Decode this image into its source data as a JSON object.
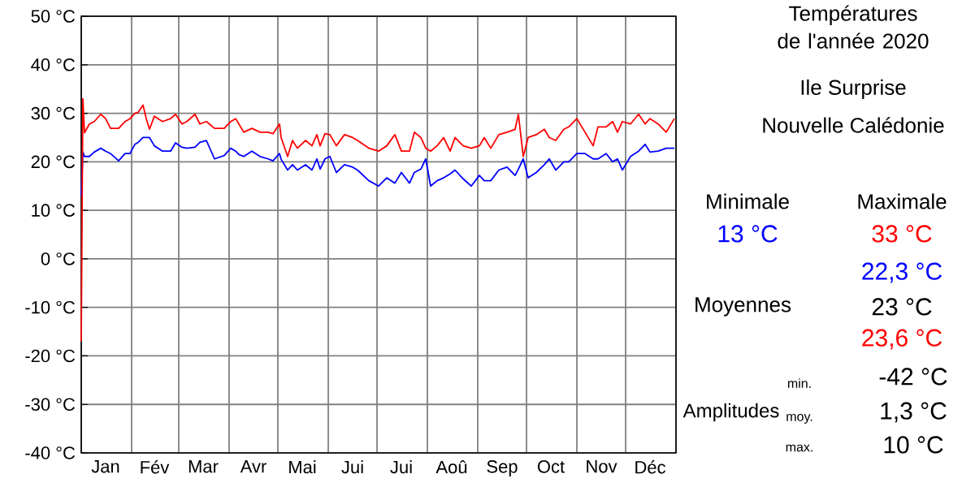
{
  "chart_data": {
    "type": "line",
    "title": "Températures de l'année 2020",
    "x": [
      "2020-01-01",
      "2020-01-02",
      "2020-01-03",
      "2020-01-06",
      "2020-01-09",
      "2020-01-13",
      "2020-01-16",
      "2020-01-19",
      "2020-01-24",
      "2020-01-28",
      "2020-01-31",
      "2020-02-03",
      "2020-02-05",
      "2020-02-08",
      "2020-02-10",
      "2020-02-12",
      "2020-02-15",
      "2020-02-20",
      "2020-02-25",
      "2020-02-28",
      "2020-03-03",
      "2020-03-06",
      "2020-03-11",
      "2020-03-14",
      "2020-03-18",
      "2020-03-23",
      "2020-03-29",
      "2020-04-02",
      "2020-04-05",
      "2020-04-07",
      "2020-04-10",
      "2020-04-15",
      "2020-04-20",
      "2020-04-25",
      "2020-04-28",
      "2020-05-02",
      "2020-05-03",
      "2020-05-07",
      "2020-05-10",
      "2020-05-13",
      "2020-05-18",
      "2020-05-22",
      "2020-05-25",
      "2020-05-27",
      "2020-05-30",
      "2020-06-02",
      "2020-06-06",
      "2020-06-11",
      "2020-06-16",
      "2020-06-19",
      "2020-06-26",
      "2020-07-02",
      "2020-07-07",
      "2020-07-12",
      "2020-07-16",
      "2020-07-21",
      "2020-07-24",
      "2020-07-28",
      "2020-07-31",
      "2020-08-03",
      "2020-08-07",
      "2020-08-11",
      "2020-08-15",
      "2020-08-18",
      "2020-08-23",
      "2020-08-28",
      "2020-09-02",
      "2020-09-05",
      "2020-09-09",
      "2020-09-14",
      "2020-09-19",
      "2020-09-24",
      "2020-09-26",
      "2020-09-29",
      "2020-10-02",
      "2020-10-07",
      "2020-10-12",
      "2020-10-15",
      "2020-10-19",
      "2020-10-24",
      "2020-10-27",
      "2020-11-01",
      "2020-11-06",
      "2020-11-11",
      "2020-11-14",
      "2020-11-19",
      "2020-11-23",
      "2020-11-26",
      "2020-11-29",
      "2020-12-04",
      "2020-12-09",
      "2020-12-13",
      "2020-12-16",
      "2020-12-21",
      "2020-12-26",
      "2020-12-31"
    ],
    "series": [
      {
        "color": "#0000ff",
        "values": [
          13,
          22,
          21.1,
          21.1,
          22,
          22.8,
          22.2,
          21.7,
          20.2,
          21.7,
          21.7,
          23.6,
          24,
          25,
          25,
          25,
          23.3,
          22.2,
          22.2,
          23.9,
          23,
          22.8,
          23,
          24,
          24.4,
          20.6,
          21.3,
          22.8,
          22.2,
          21.5,
          21.1,
          22.2,
          21.1,
          20.6,
          20.2,
          21.7,
          20.5,
          18.3,
          19.4,
          18.3,
          19.4,
          18.3,
          20.6,
          18.5,
          20.6,
          21.1,
          17.8,
          19.4,
          18.9,
          18.3,
          16.1,
          15,
          16.7,
          15.6,
          17.8,
          15.6,
          17.8,
          18.5,
          20.6,
          15,
          16.1,
          16.7,
          17.5,
          18.3,
          16.5,
          15,
          17.2,
          16.1,
          16.1,
          18.3,
          18.9,
          17.2,
          18.5,
          20.6,
          16.7,
          17.8,
          19.4,
          20.6,
          18.3,
          20,
          20,
          21.7,
          21.7,
          20.6,
          20.6,
          21.7,
          20,
          20.6,
          18.3,
          21.1,
          22.2,
          23.6,
          22,
          22.2,
          22.8,
          22.8
        ]
      },
      {
        "color": "#ff0000",
        "values": [
          -17,
          33,
          26,
          27.8,
          28.3,
          29.8,
          28.9,
          26.9,
          26.9,
          28.3,
          28.9,
          30,
          30.2,
          31.7,
          28.9,
          26.7,
          29.4,
          28.3,
          28.9,
          29.8,
          27.8,
          28.3,
          29.8,
          27.8,
          28.3,
          26.9,
          26.9,
          28.3,
          28.9,
          27.8,
          26.1,
          26.9,
          26.1,
          26.1,
          25.8,
          27.8,
          25,
          21.1,
          24.4,
          22.8,
          24.4,
          23.3,
          25.6,
          23.3,
          25.8,
          25.6,
          23.3,
          25.6,
          25,
          24.4,
          22.8,
          22.2,
          23.3,
          25.6,
          22.2,
          22.2,
          26.1,
          25,
          22.8,
          22.2,
          23.3,
          25,
          22.2,
          25,
          23.3,
          22.8,
          23.3,
          25,
          22.8,
          25.6,
          26.1,
          26.7,
          29.8,
          21.1,
          25,
          25.6,
          26.7,
          25,
          24.4,
          26.7,
          27.2,
          28.9,
          26.1,
          23.3,
          27.2,
          27.2,
          28.3,
          26.1,
          28.3,
          27.8,
          29.8,
          27.8,
          28.9,
          27.8,
          26.1,
          28.9
        ]
      }
    ],
    "xlim": [
      "2020-01-01",
      "2021-01-01"
    ],
    "xticks": [
      {
        "value": "2020-01-01",
        "label": null
      },
      {
        "value": "2020-01-16",
        "label": "Jan"
      },
      {
        "value": "2020-02-01",
        "label": null
      },
      {
        "value": "2020-02-15",
        "label": "Fév"
      },
      {
        "value": "2020-03-01",
        "label": null
      },
      {
        "value": "2020-03-16",
        "label": "Mar"
      },
      {
        "value": "2020-04-01",
        "label": null
      },
      {
        "value": "2020-04-16",
        "label": "Avr"
      },
      {
        "value": "2020-05-01",
        "label": null
      },
      {
        "value": "2020-05-16",
        "label": "Mai"
      },
      {
        "value": "2020-06-01",
        "label": null
      },
      {
        "value": "2020-06-16",
        "label": "Jui"
      },
      {
        "value": "2020-07-01",
        "label": null
      },
      {
        "value": "2020-07-16",
        "label": "Jui"
      },
      {
        "value": "2020-08-01",
        "label": null
      },
      {
        "value": "2020-08-16",
        "label": "Aoû"
      },
      {
        "value": "2020-09-01",
        "label": null
      },
      {
        "value": "2020-09-16",
        "label": "Sep"
      },
      {
        "value": "2020-10-01",
        "label": null
      },
      {
        "value": "2020-10-16",
        "label": "Oct"
      },
      {
        "value": "2020-11-01",
        "label": null
      },
      {
        "value": "2020-11-16",
        "label": "Nov"
      },
      {
        "value": "2020-12-01",
        "label": null
      },
      {
        "value": "2020-12-16",
        "label": "Déc"
      },
      {
        "value": "2021-01-01",
        "label": null
      }
    ],
    "ylim": [
      -40,
      50
    ],
    "yticks": [
      {
        "value": -40,
        "label": "-40 °C"
      },
      {
        "value": -30,
        "label": "-30 °C"
      },
      {
        "value": -20,
        "label": "-20 °C"
      },
      {
        "value": -10,
        "label": "-10 °C"
      },
      {
        "value": 0,
        "label": "0 °C"
      },
      {
        "value": 10,
        "label": "10 °C"
      },
      {
        "value": 20,
        "label": "20 °C"
      },
      {
        "value": 30,
        "label": "30 °C"
      },
      {
        "value": 40,
        "label": "40 °C"
      },
      {
        "value": 50,
        "label": "50 °C"
      }
    ],
    "grid": true,
    "marker": "none",
    "line_style": "solid",
    "annotations": [
      "Ile Surprise",
      "Nouvelle Calédonie",
      "Minimale",
      "Maximale",
      "13 °C",
      "33 °C",
      "22,3 °C",
      "Moyennes",
      "23 °C",
      "23,6 °C",
      "Amplitudes",
      "min.",
      "-42 °C",
      "moy.",
      "1,3 °C",
      "max.",
      "10 °C"
    ]
  }
}
